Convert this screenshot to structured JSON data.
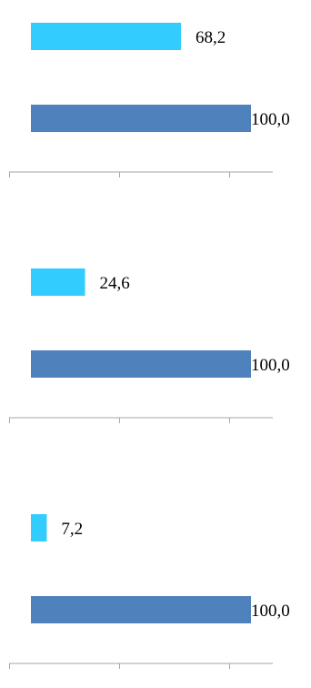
{
  "chart_data": [
    {
      "type": "bar",
      "orientation": "horizontal",
      "categories": [
        "",
        ""
      ],
      "values": [
        68.2,
        100.0
      ],
      "value_labels": [
        "68,2",
        "100,0"
      ],
      "colors": [
        "#33ccff",
        "#4f81bd"
      ],
      "xlim": [
        0,
        110
      ],
      "grid": false
    },
    {
      "type": "bar",
      "orientation": "horizontal",
      "categories": [
        "",
        ""
      ],
      "values": [
        24.6,
        100.0
      ],
      "value_labels": [
        "24,6",
        "100,0"
      ],
      "colors": [
        "#33ccff",
        "#4f81bd"
      ],
      "xlim": [
        0,
        110
      ],
      "grid": false
    },
    {
      "type": "bar",
      "orientation": "horizontal",
      "categories": [
        "",
        ""
      ],
      "values": [
        7.2,
        100.0
      ],
      "value_labels": [
        "7,2",
        "100,0"
      ],
      "colors": [
        "#33ccff",
        "#4f81bd"
      ],
      "xlim": [
        0,
        110
      ],
      "grid": false
    }
  ],
  "axis_color": "#a6a6a6"
}
